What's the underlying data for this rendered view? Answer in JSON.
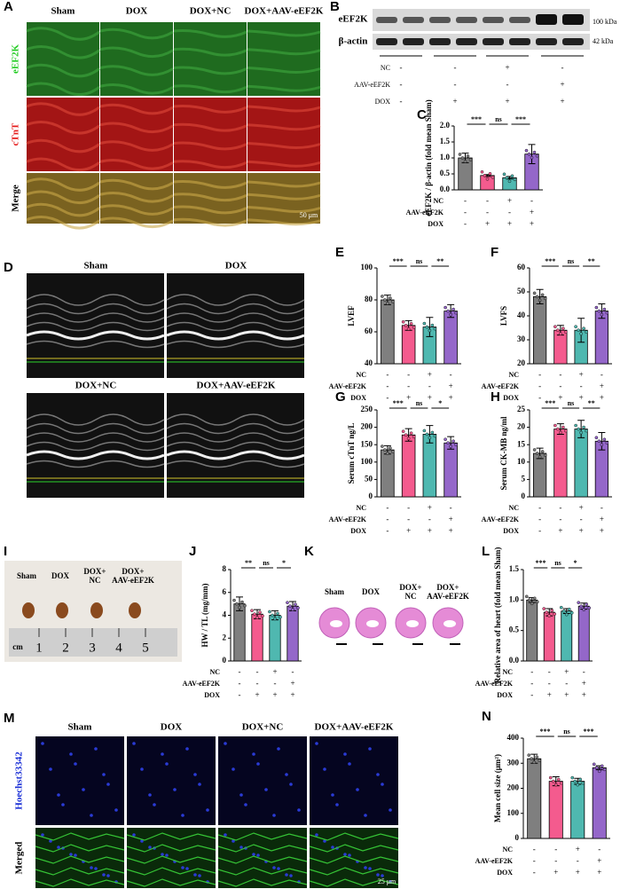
{
  "panels": {
    "A": {
      "label": "A",
      "columns": [
        "Sham",
        "DOX",
        "DOX+NC",
        "DOX+AAV-eEF2K"
      ],
      "rows": [
        "eEF2K",
        "cTnT",
        "Merge"
      ],
      "scale": "50 μm"
    },
    "B": {
      "label": "B",
      "bands": [
        "eEF2K",
        "β-actin"
      ],
      "sizes": [
        "100 kDa",
        "42 kDa"
      ],
      "conditions": [
        "NC",
        "AAV-eEF2K",
        "DOX"
      ],
      "signs": [
        [
          "-",
          "-",
          "+",
          "-"
        ],
        [
          "-",
          "-",
          "-",
          "+"
        ],
        [
          "-",
          "+",
          "+",
          "+"
        ]
      ]
    },
    "D": {
      "label": "D",
      "images": [
        "Sham",
        "DOX",
        "DOX+NC",
        "DOX+AAV-eEF2K"
      ]
    },
    "I": {
      "label": "I",
      "groups": [
        [
          "Sham"
        ],
        [
          "DOX"
        ],
        [
          "DOX+",
          "NC"
        ],
        [
          "DOX+",
          "AAV-eEF2K"
        ]
      ],
      "unit": "cm",
      "ruler": [
        "1",
        "2",
        "3",
        "4",
        "5"
      ]
    },
    "K": {
      "label": "K",
      "groups": [
        [
          "Sham"
        ],
        [
          "DOX"
        ],
        [
          "DOX+",
          "NC"
        ],
        [
          "DOX+",
          "AAV-eEF2K"
        ]
      ]
    },
    "M": {
      "label": "M",
      "columns": [
        "Sham",
        "DOX",
        "DOX+NC",
        "DOX+AAV-eEF2K"
      ],
      "rows": [
        "Hoechst33342",
        "Merged"
      ],
      "scale": "25 μm"
    }
  },
  "chart_data": [
    {
      "type": "bar",
      "label": "C",
      "ylabel": "eEF2K / β-actin (fold mean Sham)",
      "values": [
        1.0,
        0.45,
        0.38,
        1.12
      ],
      "errors": [
        0.15,
        0.03,
        0.04,
        0.3
      ],
      "colors": [
        "#7f7f7f",
        "#f45b8e",
        "#4fb8b0",
        "#9467c9"
      ],
      "ylim": [
        0,
        2
      ],
      "yticks": [
        {
          "value": 0,
          "label": "0.0"
        },
        0.5,
        {
          "value": 1,
          "label": "1.0"
        },
        1.5,
        {
          "value": 2,
          "label": "2.0"
        }
      ],
      "significance": [
        "***",
        "ns",
        "***"
      ],
      "conditions": [
        "NC",
        "AAV-eEF2K",
        "DOX"
      ],
      "signs": [
        [
          "-",
          "-",
          "+",
          "-"
        ],
        [
          "-",
          "-",
          "-",
          "+"
        ],
        [
          "-",
          "+",
          "+",
          "+"
        ]
      ]
    },
    {
      "type": "bar",
      "label": "E",
      "ylabel": "LVEF",
      "values": [
        80,
        64,
        63,
        73
      ],
      "errors": [
        3,
        3,
        6,
        4
      ],
      "colors": [
        "#7f7f7f",
        "#f45b8e",
        "#4fb8b0",
        "#9467c9"
      ],
      "ylim": [
        40,
        100
      ],
      "yticks": [
        40,
        60,
        80,
        100
      ],
      "significance": [
        "***",
        "ns",
        "**"
      ],
      "conditions": [
        "NC",
        "AAV-eEF2K",
        "DOX"
      ],
      "signs": [
        [
          "-",
          "-",
          "+",
          "-"
        ],
        [
          "-",
          "-",
          "-",
          "+"
        ],
        [
          "-",
          "+",
          "+",
          "+"
        ]
      ]
    },
    {
      "type": "bar",
      "label": "F",
      "ylabel": "LVFS",
      "values": [
        48,
        34,
        34,
        42
      ],
      "errors": [
        3,
        2,
        5,
        3
      ],
      "colors": [
        "#7f7f7f",
        "#f45b8e",
        "#4fb8b0",
        "#9467c9"
      ],
      "ylim": [
        20,
        60
      ],
      "yticks": [
        20,
        30,
        40,
        50,
        60
      ],
      "significance": [
        "***",
        "ns",
        "**"
      ],
      "conditions": [
        "NC",
        "AAV-eEF2K",
        "DOX"
      ],
      "signs": [
        [
          "-",
          "-",
          "+",
          "-"
        ],
        [
          "-",
          "-",
          "-",
          "+"
        ],
        [
          "-",
          "+",
          "+",
          "+"
        ]
      ]
    },
    {
      "type": "bar",
      "label": "G",
      "ylabel": "Serum cTnT  ng/L",
      "values": [
        135,
        178,
        180,
        155
      ],
      "errors": [
        12,
        18,
        25,
        18
      ],
      "colors": [
        "#7f7f7f",
        "#f45b8e",
        "#4fb8b0",
        "#9467c9"
      ],
      "ylim": [
        0,
        250
      ],
      "yticks": [
        0,
        50,
        100,
        150,
        200,
        250
      ],
      "significance": [
        "***",
        "ns",
        "*"
      ],
      "conditions": [
        "NC",
        "AAV-eEF2K",
        "DOX"
      ],
      "signs": [
        [
          "-",
          "-",
          "+",
          "-"
        ],
        [
          "-",
          "-",
          "-",
          "+"
        ],
        [
          "-",
          "+",
          "+",
          "+"
        ]
      ]
    },
    {
      "type": "bar",
      "label": "H",
      "ylabel": "Serum CK-MB  ng/ml",
      "values": [
        12.5,
        19.5,
        19.5,
        16
      ],
      "errors": [
        1.5,
        1.5,
        2.5,
        2.5
      ],
      "colors": [
        "#7f7f7f",
        "#f45b8e",
        "#4fb8b0",
        "#9467c9"
      ],
      "ylim": [
        0,
        25
      ],
      "yticks": [
        0,
        5,
        10,
        15,
        20,
        25
      ],
      "significance": [
        "***",
        "ns",
        "**"
      ],
      "conditions": [
        "NC",
        "AAV-eEF2K",
        "DOX"
      ],
      "signs": [
        [
          "-",
          "-",
          "+",
          "-"
        ],
        [
          "-",
          "-",
          "-",
          "+"
        ],
        [
          "-",
          "+",
          "+",
          "+"
        ]
      ]
    },
    {
      "type": "bar",
      "label": "J",
      "ylabel": "HW / TL (mg/mm)",
      "values": [
        5.0,
        4.1,
        4.0,
        4.8
      ],
      "errors": [
        0.6,
        0.4,
        0.4,
        0.4
      ],
      "colors": [
        "#7f7f7f",
        "#f45b8e",
        "#4fb8b0",
        "#9467c9"
      ],
      "ylim": [
        0,
        8
      ],
      "yticks": [
        0,
        2,
        4,
        6,
        8
      ],
      "significance": [
        "**",
        "ns",
        "*"
      ],
      "conditions": [
        "NC",
        "AAV-eEF2K",
        "DOX"
      ],
      "signs": [
        [
          "-",
          "-",
          "+",
          "-"
        ],
        [
          "-",
          "-",
          "-",
          "+"
        ],
        [
          "-",
          "+",
          "+",
          "+"
        ]
      ]
    },
    {
      "type": "bar",
      "label": "L",
      "ylabel": "Relative area of heart (fold mean Sham)",
      "values": [
        1.0,
        0.8,
        0.82,
        0.9
      ],
      "errors": [
        0.04,
        0.06,
        0.04,
        0.05
      ],
      "colors": [
        "#7f7f7f",
        "#f45b8e",
        "#4fb8b0",
        "#9467c9"
      ],
      "ylim": [
        0,
        1.5
      ],
      "yticks": [
        {
          "value": 0,
          "label": "0.0"
        },
        0.5,
        {
          "value": 1,
          "label": "1.0"
        },
        1.5
      ],
      "significance": [
        "***",
        "ns",
        "*"
      ],
      "conditions": [
        "NC",
        "AAV-eEF2K",
        "DOX"
      ],
      "signs": [
        [
          "-",
          "-",
          "+",
          "-"
        ],
        [
          "-",
          "-",
          "-",
          "+"
        ],
        [
          "-",
          "+",
          "+",
          "+"
        ]
      ]
    },
    {
      "type": "bar",
      "label": "N",
      "ylabel": "Mean cell size (μm²)",
      "values": [
        318,
        228,
        228,
        282
      ],
      "errors": [
        18,
        18,
        12,
        8
      ],
      "colors": [
        "#7f7f7f",
        "#f45b8e",
        "#4fb8b0",
        "#9467c9"
      ],
      "ylim": [
        0,
        400
      ],
      "yticks": [
        0,
        100,
        200,
        300,
        400
      ],
      "significance": [
        "***",
        "ns",
        "***"
      ],
      "conditions": [
        "NC",
        "AAV-eEF2K",
        "DOX"
      ],
      "signs": [
        [
          "-",
          "-",
          "+",
          "-"
        ],
        [
          "-",
          "-",
          "-",
          "+"
        ],
        [
          "-",
          "+",
          "+",
          "+"
        ]
      ]
    }
  ]
}
